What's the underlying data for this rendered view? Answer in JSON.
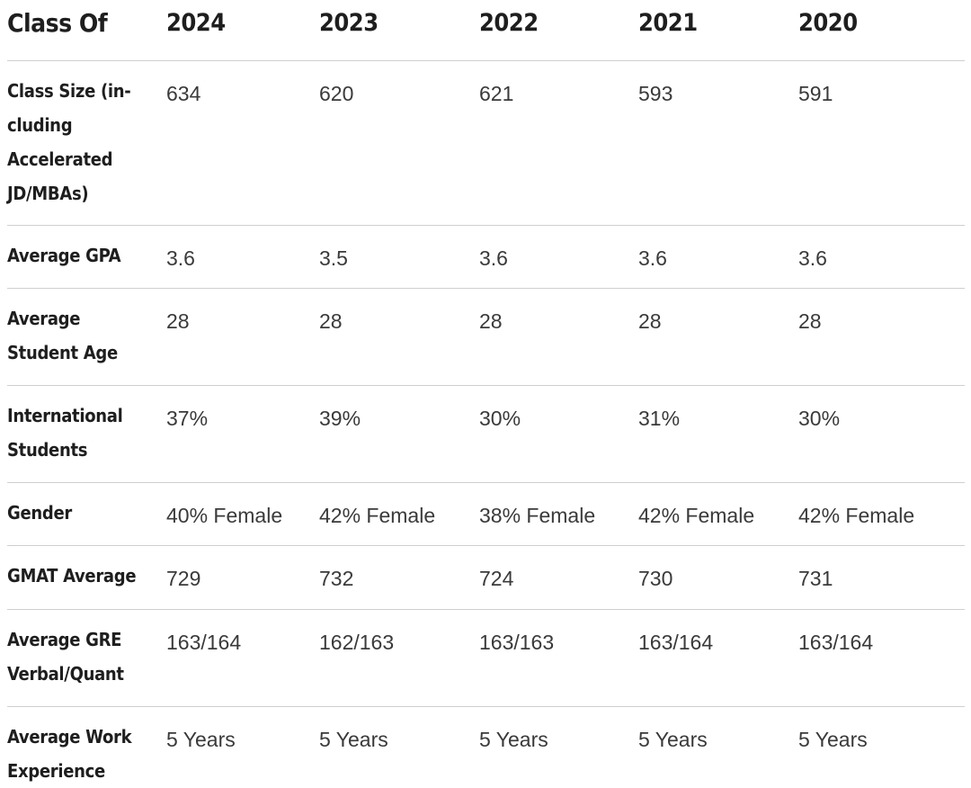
{
  "table": {
    "header": [
      "Class Of",
      "2024",
      "2023",
      "2022",
      "2021",
      "2020"
    ],
    "rows": [
      {
        "label": "Class Size  (in­cluding Accelerated JD/MBAs)",
        "label_display": "Class Size  (in-cluding Accelerated JD/MBAs)",
        "values": [
          "634",
          "620",
          "621",
          "593",
          "591"
        ]
      },
      {
        "label_display": "Average GPA",
        "values": [
          "3.6",
          "3.5",
          "3.6",
          "3.6",
          "3.6"
        ]
      },
      {
        "label_display": "Average Student Age",
        "values": [
          "28",
          "28",
          "28",
          "28",
          "28"
        ]
      },
      {
        "label_display": "International Students",
        "values": [
          "37%",
          "39%",
          "30%",
          "31%",
          "30%"
        ]
      },
      {
        "label_display": "Gender",
        "values": [
          "40% Female",
          "42% Female",
          "38% Female",
          "42% Female",
          "42% Female"
        ]
      },
      {
        "label_display": "GMAT Average",
        "values": [
          "729",
          "732",
          "724",
          "730",
          "731"
        ]
      },
      {
        "label_display": "Average GRE Verbal/Quant",
        "values": [
          "163/164",
          "162/163",
          "163/163",
          "163/164",
          "163/164"
        ]
      },
      {
        "label_display": "Average Work Experience",
        "values": [
          "5 Years",
          "5 Years",
          "5 Years",
          "5 Years",
          "5 Years"
        ]
      }
    ]
  }
}
